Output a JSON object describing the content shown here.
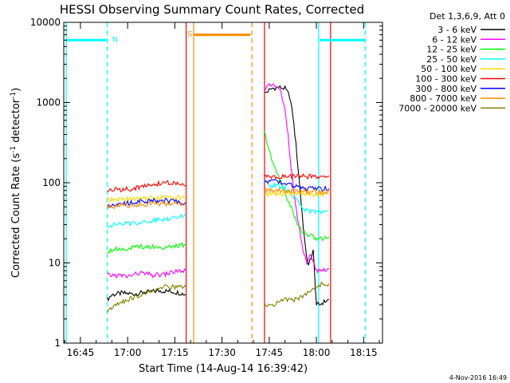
{
  "chart_data": {
    "type": "line",
    "title": "HESSI Observing Summary Count Rates, Corrected",
    "xlabel": "Start Time (14-Aug-14 16:39:42)",
    "ylabel_main": "Corrected Count Rate (s",
    "ylabel_sup1": "-1",
    "ylabel_mid": " detector",
    "ylabel_sup2": "-1",
    "ylabel_end": ")",
    "footer": "4-Nov-2016 16:49",
    "y_scale": "log",
    "ylim": [
      1,
      10000
    ],
    "xlim_minutes": [
      39.7,
      141
    ],
    "x_ticks": [
      {
        "m": 45,
        "label": "16:45"
      },
      {
        "m": 60,
        "label": "17:00"
      },
      {
        "m": 75,
        "label": "17:15"
      },
      {
        "m": 90,
        "label": "17:30"
      },
      {
        "m": 105,
        "label": "17:45"
      },
      {
        "m": 120,
        "label": "18:00"
      },
      {
        "m": 135,
        "label": "18:15"
      }
    ],
    "y_ticks": [
      {
        "v": 1,
        "label": "1"
      },
      {
        "v": 10,
        "label": "10"
      },
      {
        "v": 100,
        "label": "100"
      },
      {
        "v": 1000,
        "label": "1000"
      },
      {
        "v": 10000,
        "label": "10000"
      }
    ],
    "legend_header": "Det 1,3,6,9, Att 0",
    "legend_placement": "right",
    "series": [
      {
        "name": "3 - 6 keV",
        "color": "#000000",
        "segments": [
          [
            [
              53.5,
              3.5
            ],
            [
              55,
              4
            ],
            [
              58,
              4.2
            ],
            [
              62,
              4.1
            ],
            [
              66,
              4.3
            ],
            [
              70,
              4.5
            ],
            [
              74,
              4.4
            ],
            [
              77,
              4.2
            ],
            [
              78.5,
              4.0
            ]
          ],
          [
            [
              103.5,
              1300
            ],
            [
              106,
              1500
            ],
            [
              108,
              1550
            ],
            [
              110,
              1500
            ],
            [
              111.5,
              1200
            ],
            [
              112.5,
              700
            ],
            [
              113.5,
              300
            ],
            [
              114.5,
              110
            ],
            [
              115.5,
              40
            ],
            [
              116.5,
              15
            ],
            [
              117.5,
              9
            ],
            [
              118,
              11
            ],
            [
              119,
              14
            ],
            [
              120,
              3
            ],
            [
              121,
              3
            ],
            [
              122,
              3.2
            ],
            [
              124,
              3.5
            ]
          ]
        ]
      },
      {
        "name": "6 - 12 keV",
        "color": "#ff00ff",
        "segments": [
          [
            [
              53.5,
              7
            ],
            [
              56,
              7
            ],
            [
              60,
              6.8
            ],
            [
              64,
              7.5
            ],
            [
              68,
              7
            ],
            [
              72,
              7.2
            ],
            [
              75,
              7.8
            ],
            [
              78.5,
              8
            ]
          ],
          [
            [
              103.5,
              1500
            ],
            [
              105,
              1600
            ],
            [
              107,
              1600
            ],
            [
              108.5,
              1400
            ],
            [
              110,
              800
            ],
            [
              111,
              400
            ],
            [
              112,
              150
            ],
            [
              113,
              70
            ],
            [
              114,
              35
            ],
            [
              115,
              20
            ],
            [
              116,
              13
            ],
            [
              117,
              10
            ],
            [
              118,
              12
            ],
            [
              119,
              10
            ],
            [
              120,
              8
            ],
            [
              122,
              8.2
            ],
            [
              124,
              8.5
            ]
          ]
        ]
      },
      {
        "name": "12 - 25 keV",
        "color": "#00ff00",
        "segments": [
          [
            [
              53.5,
              14
            ],
            [
              56,
              15
            ],
            [
              60,
              15
            ],
            [
              64,
              16
            ],
            [
              68,
              16
            ],
            [
              72,
              15.5
            ],
            [
              75,
              16
            ],
            [
              78.5,
              17
            ]
          ],
          [
            [
              103.5,
              420
            ],
            [
              105,
              250
            ],
            [
              106,
              180
            ],
            [
              107,
              150
            ],
            [
              108,
              120
            ],
            [
              109,
              95
            ],
            [
              110,
              75
            ],
            [
              111,
              60
            ],
            [
              112,
              50
            ],
            [
              113,
              38
            ],
            [
              114,
              30
            ],
            [
              115,
              26
            ],
            [
              117,
              23
            ],
            [
              119,
              21
            ],
            [
              120,
              20
            ],
            [
              122,
              20
            ],
            [
              124,
              21
            ]
          ]
        ]
      },
      {
        "name": "25 - 50 keV",
        "color": "#00ffff",
        "segments": [
          [
            [
              53.5,
              29
            ],
            [
              56,
              30
            ],
            [
              60,
              31
            ],
            [
              64,
              32
            ],
            [
              68,
              34
            ],
            [
              72,
              35
            ],
            [
              75,
              38
            ],
            [
              78.5,
              40
            ]
          ],
          [
            [
              103.5,
              100
            ],
            [
              105,
              95
            ],
            [
              108,
              90
            ],
            [
              110,
              85
            ],
            [
              112,
              72
            ],
            [
              114,
              58
            ],
            [
              116,
              47
            ],
            [
              118,
              44
            ],
            [
              120,
              43
            ],
            [
              122,
              44
            ],
            [
              124,
              45
            ]
          ]
        ]
      },
      {
        "name": "50 - 100 keV",
        "color": "#ffd700",
        "segments": [
          [
            [
              53.5,
              60
            ],
            [
              58,
              62
            ],
            [
              62,
              63
            ],
            [
              66,
              64
            ],
            [
              70,
              66
            ],
            [
              74,
              65
            ],
            [
              78.5,
              65
            ]
          ],
          [
            [
              103.5,
              72
            ],
            [
              106,
              72
            ],
            [
              110,
              73
            ],
            [
              114,
              73
            ],
            [
              118,
              72
            ],
            [
              122,
              72
            ],
            [
              124,
              72
            ]
          ]
        ]
      },
      {
        "name": "100 - 300 keV",
        "color": "#ff0000",
        "segments": [
          [
            [
              53.5,
              80
            ],
            [
              56,
              82
            ],
            [
              60,
              83
            ],
            [
              64,
              88
            ],
            [
              68,
              95
            ],
            [
              72,
              100
            ],
            [
              75,
              98
            ],
            [
              78.5,
              92
            ]
          ],
          [
            [
              103.5,
              118
            ],
            [
              106,
              118
            ],
            [
              110,
              119
            ],
            [
              114,
              120
            ],
            [
              118,
              120
            ],
            [
              120,
              119
            ],
            [
              122,
              120
            ],
            [
              124,
              122
            ]
          ]
        ]
      },
      {
        "name": "300 - 800 keV",
        "color": "#0000ff",
        "segments": [
          [
            [
              53.5,
              53
            ],
            [
              56,
              54
            ],
            [
              60,
              56
            ],
            [
              64,
              58
            ],
            [
              68,
              60
            ],
            [
              72,
              60
            ],
            [
              75,
              58
            ],
            [
              78.5,
              56
            ]
          ],
          [
            [
              103.5,
              105
            ],
            [
              106,
              105
            ],
            [
              108,
              103
            ],
            [
              110,
              98
            ],
            [
              112,
              92
            ],
            [
              114,
              87
            ],
            [
              116,
              85
            ],
            [
              118,
              84
            ],
            [
              120,
              84
            ],
            [
              122,
              84
            ],
            [
              124,
              84
            ]
          ]
        ]
      },
      {
        "name": "800 - 7000 keV",
        "color": "#ff8c00",
        "segments": [
          [
            [
              53.5,
              50
            ],
            [
              56,
              51
            ],
            [
              60,
              52
            ],
            [
              64,
              53
            ],
            [
              68,
              55
            ],
            [
              72,
              55
            ],
            [
              75,
              54
            ],
            [
              78.5,
              53
            ]
          ],
          [
            [
              103.5,
              80
            ],
            [
              106,
              80
            ],
            [
              110,
              79
            ],
            [
              114,
              78
            ],
            [
              118,
              77
            ],
            [
              122,
              77
            ],
            [
              124,
              77
            ]
          ]
        ]
      },
      {
        "name": "7000 - 20000 keV",
        "color": "#808000",
        "segments": [
          [
            [
              53.5,
              2.5
            ],
            [
              56,
              3
            ],
            [
              60,
              3.5
            ],
            [
              64,
              4
            ],
            [
              68,
              4.5
            ],
            [
              72,
              5
            ],
            [
              75,
              5
            ],
            [
              78.5,
              5
            ]
          ],
          [
            [
              103.5,
              3
            ],
            [
              106,
              3
            ],
            [
              110,
              3.5
            ],
            [
              114,
              3.5
            ],
            [
              116,
              4
            ],
            [
              118,
              4.5
            ],
            [
              120,
              5
            ],
            [
              122,
              5.5
            ],
            [
              124,
              5.5
            ]
          ]
        ]
      }
    ],
    "annotations": {
      "night_bars": [
        {
          "x0": 40.5,
          "x1": 53.5,
          "v": 6000,
          "color": "#00ffff"
        },
        {
          "x0": 121,
          "x1": 135.5,
          "v": 6000,
          "color": "#00ffff"
        },
        {
          "x0": 81,
          "x1": 99,
          "v": 7000,
          "color": "#ff8c00"
        }
      ],
      "vlines": [
        {
          "m": 40.5,
          "color": "#00ffff",
          "style": "solid"
        },
        {
          "m": 53.5,
          "color": "#00ffff",
          "style": "dashed"
        },
        {
          "m": 120.7,
          "color": "#00ffff",
          "style": "solid"
        },
        {
          "m": 135.5,
          "color": "#00ffff",
          "style": "dashed"
        },
        {
          "m": 81,
          "color": "#ff8c00",
          "style": "solid"
        },
        {
          "m": 99.5,
          "color": "#ff8c00",
          "style": "dashed"
        },
        {
          "m": 78.6,
          "color": "#ff0000",
          "style": "solid"
        },
        {
          "m": 103.5,
          "color": "#ff0000",
          "style": "solid"
        },
        {
          "m": 124.5,
          "color": "#ff0000",
          "style": "solid"
        }
      ],
      "markers": [
        {
          "text": "N",
          "m": 56,
          "v": 6000,
          "color": "#00ffff"
        },
        {
          "text": "S",
          "m": 79.8,
          "v": 7000,
          "color": "#ff8c00"
        }
      ]
    }
  }
}
